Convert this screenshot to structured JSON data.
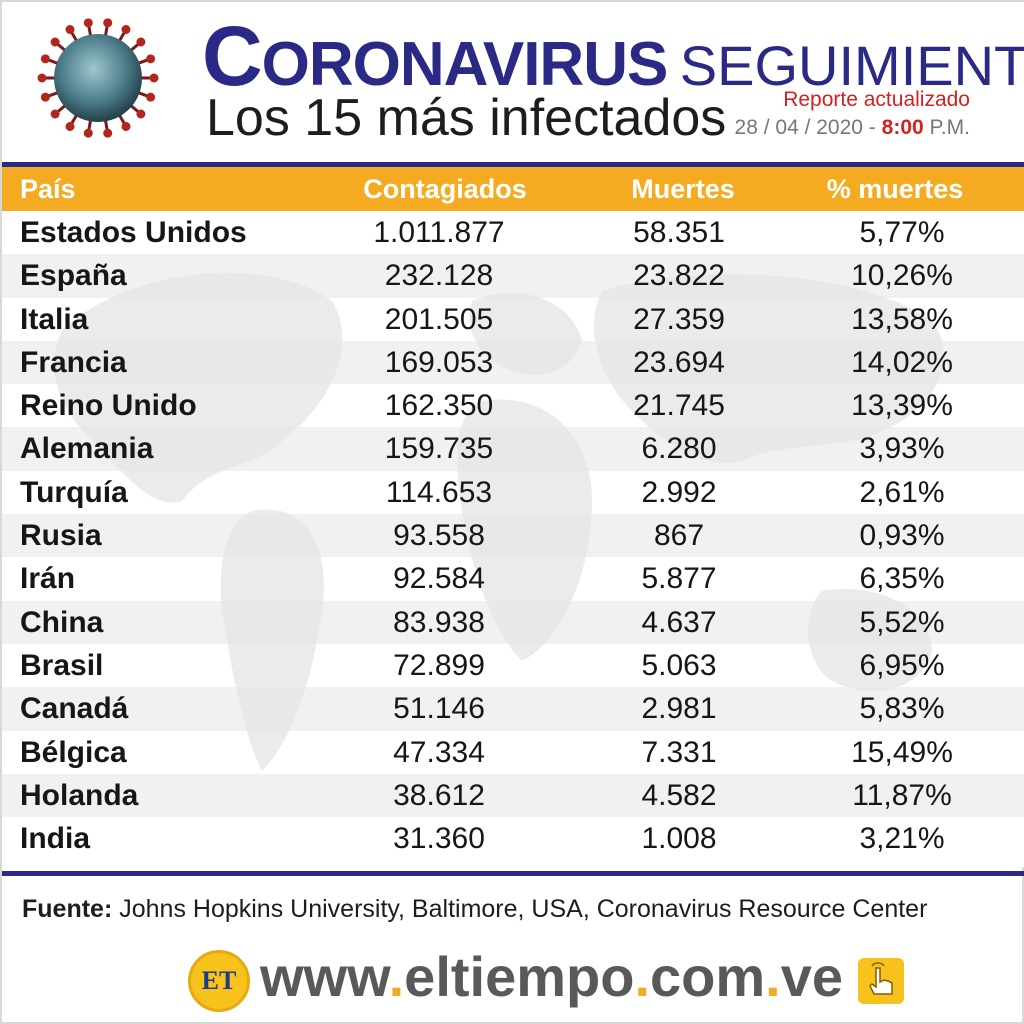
{
  "header": {
    "title_cap": "C",
    "title_rest": "ORONAVIRUS",
    "title_sub": "SEGUIMIENTO",
    "subtitle": "Los 15 más infectados",
    "report_label": "Reporte actualizado",
    "report_date": "28 / 04 / 2020 -",
    "report_hour": "8:00",
    "report_ampm": "P.M."
  },
  "table": {
    "columns": [
      "País",
      "Contagiados",
      "Muertes",
      "% muertes"
    ],
    "rows": [
      {
        "country": "Estados Unidos",
        "confirmed": "1.011.877",
        "deaths": "58.351",
        "pct": "5,77%"
      },
      {
        "country": "España",
        "confirmed": "232.128",
        "deaths": "23.822",
        "pct": "10,26%"
      },
      {
        "country": "Italia",
        "confirmed": "201.505",
        "deaths": "27.359",
        "pct": "13,58%"
      },
      {
        "country": "Francia",
        "confirmed": "169.053",
        "deaths": "23.694",
        "pct": "14,02%"
      },
      {
        "country": "Reino Unido",
        "confirmed": "162.350",
        "deaths": "21.745",
        "pct": "13,39%"
      },
      {
        "country": "Alemania",
        "confirmed": "159.735",
        "deaths": "6.280",
        "pct": "3,93%"
      },
      {
        "country": "Turquía",
        "confirmed": "114.653",
        "deaths": "2.992",
        "pct": "2,61%"
      },
      {
        "country": "Rusia",
        "confirmed": "93.558",
        "deaths": "867",
        "pct": "0,93%"
      },
      {
        "country": "Irán",
        "confirmed": "92.584",
        "deaths": "5.877",
        "pct": "6,35%"
      },
      {
        "country": "China",
        "confirmed": "83.938",
        "deaths": "4.637",
        "pct": "5,52%"
      },
      {
        "country": "Brasil",
        "confirmed": "72.899",
        "deaths": "5.063",
        "pct": "6,95%"
      },
      {
        "country": "Canadá",
        "confirmed": "51.146",
        "deaths": "2.981",
        "pct": "5,83%"
      },
      {
        "country": "Bélgica",
        "confirmed": "47.334",
        "deaths": "7.331",
        "pct": "15,49%"
      },
      {
        "country": "Holanda",
        "confirmed": "38.612",
        "deaths": "4.582",
        "pct": "11,87%"
      },
      {
        "country": "India",
        "confirmed": "31.360",
        "deaths": "1.008",
        "pct": "3,21%"
      }
    ]
  },
  "footer": {
    "source_label": "Fuente:",
    "source_text": "Johns Hopkins University, Baltimore, USA, Coronavirus Resource Center",
    "logo_text": "ET",
    "url_parts": [
      "www",
      ".",
      "eltiempo",
      ".",
      "com",
      ".",
      "ve"
    ]
  },
  "icons": {
    "virus": "coronavirus-icon",
    "logo": "el-tiempo-logo",
    "hand": "pointing-hand-icon"
  },
  "colors": {
    "navy": "#2a2a86",
    "orange": "#f4ab22",
    "red": "#d42020"
  }
}
